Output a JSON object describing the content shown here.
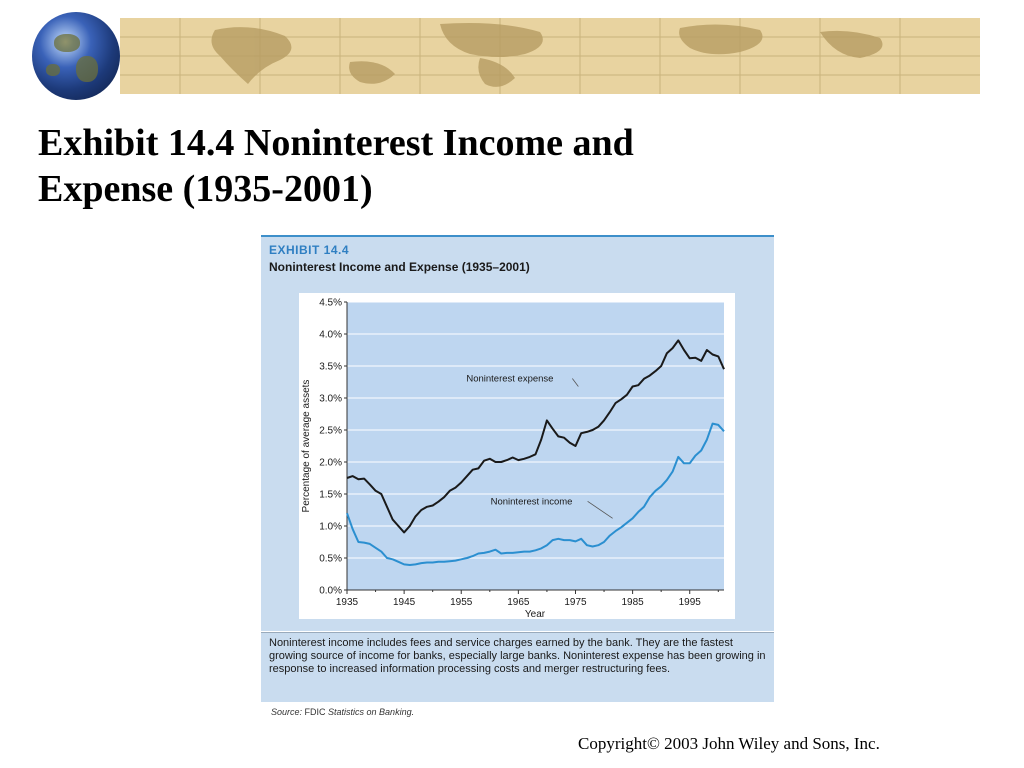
{
  "slide": {
    "title_line1": "Exhibit 14.4  Noninterest Income and",
    "title_line2": "Expense (1935-2001)",
    "copyright": "Copyright© 2003  John Wiley and Sons, Inc."
  },
  "exhibit": {
    "label": "EXHIBIT 14.4",
    "subtitle": "Noninterest Income and Expense (1935–2001)",
    "caption": "Noninterest income includes fees and service charges earned by the bank. They are the fastest growing source of income for banks, especially large banks. Noninterest expense has been growing in response to increased information processing costs and merger restructuring fees.",
    "source_prefix": "Source:",
    "source_org": " FDIC ",
    "source_title": "Statistics on Banking."
  },
  "chart_data": {
    "type": "line",
    "xlabel": "Year",
    "ylabel": "Percentage of average assets",
    "xlim": [
      1935,
      2001
    ],
    "ylim": [
      0,
      4.5
    ],
    "x_ticks": [
      1935,
      1945,
      1955,
      1965,
      1975,
      1985,
      1995
    ],
    "y_ticks": [
      0,
      0.5,
      1.0,
      1.5,
      2.0,
      2.5,
      3.0,
      3.5,
      4.0,
      4.5
    ],
    "y_tick_labels": [
      "0.0%",
      "0.5%",
      "1.0%",
      "1.5%",
      "2.0%",
      "2.5%",
      "3.0%",
      "3.5%",
      "4.0%",
      "4.5%"
    ],
    "grid": true,
    "series": [
      {
        "name": "Noninterest expense",
        "color": "#1a1a1a",
        "x": [
          1935,
          1936,
          1937,
          1938,
          1939,
          1940,
          1941,
          1942,
          1943,
          1944,
          1945,
          1946,
          1947,
          1948,
          1949,
          1950,
          1951,
          1952,
          1953,
          1954,
          1955,
          1956,
          1957,
          1958,
          1959,
          1960,
          1961,
          1962,
          1963,
          1964,
          1965,
          1966,
          1967,
          1968,
          1969,
          1970,
          1971,
          1972,
          1973,
          1974,
          1975,
          1976,
          1977,
          1978,
          1979,
          1980,
          1981,
          1982,
          1983,
          1984,
          1985,
          1986,
          1987,
          1988,
          1989,
          1990,
          1991,
          1992,
          1993,
          1994,
          1995,
          1996,
          1997,
          1998,
          1999,
          2000,
          2001
        ],
        "values": [
          1.75,
          1.78,
          1.73,
          1.74,
          1.65,
          1.55,
          1.5,
          1.3,
          1.1,
          1.0,
          0.9,
          1.0,
          1.15,
          1.25,
          1.3,
          1.32,
          1.38,
          1.45,
          1.55,
          1.6,
          1.68,
          1.78,
          1.88,
          1.9,
          2.02,
          2.05,
          2.0,
          2.0,
          2.03,
          2.07,
          2.03,
          2.05,
          2.08,
          2.12,
          2.35,
          2.65,
          2.52,
          2.4,
          2.38,
          2.3,
          2.25,
          2.45,
          2.47,
          2.5,
          2.55,
          2.65,
          2.78,
          2.92,
          2.98,
          3.05,
          3.18,
          3.2,
          3.3,
          3.35,
          3.42,
          3.5,
          3.7,
          3.78,
          3.9,
          3.75,
          3.62,
          3.63,
          3.58,
          3.75,
          3.68,
          3.65,
          3.45
        ]
      },
      {
        "name": "Noninterest income",
        "color": "#2b8fd0",
        "x": [
          1935,
          1936,
          1937,
          1938,
          1939,
          1940,
          1941,
          1942,
          1943,
          1944,
          1945,
          1946,
          1947,
          1948,
          1949,
          1950,
          1951,
          1952,
          1953,
          1954,
          1955,
          1956,
          1957,
          1958,
          1959,
          1960,
          1961,
          1962,
          1963,
          1964,
          1965,
          1966,
          1967,
          1968,
          1969,
          1970,
          1971,
          1972,
          1973,
          1974,
          1975,
          1976,
          1977,
          1978,
          1979,
          1980,
          1981,
          1982,
          1983,
          1984,
          1985,
          1986,
          1987,
          1988,
          1989,
          1990,
          1991,
          1992,
          1993,
          1994,
          1995,
          1996,
          1997,
          1998,
          1999,
          2000,
          2001
        ],
        "values": [
          1.2,
          0.95,
          0.75,
          0.74,
          0.72,
          0.66,
          0.6,
          0.5,
          0.48,
          0.44,
          0.4,
          0.39,
          0.4,
          0.42,
          0.43,
          0.43,
          0.44,
          0.44,
          0.45,
          0.46,
          0.48,
          0.5,
          0.53,
          0.57,
          0.58,
          0.6,
          0.63,
          0.57,
          0.58,
          0.58,
          0.59,
          0.6,
          0.6,
          0.62,
          0.65,
          0.7,
          0.78,
          0.8,
          0.78,
          0.78,
          0.76,
          0.8,
          0.7,
          0.68,
          0.7,
          0.75,
          0.85,
          0.92,
          0.98,
          1.05,
          1.12,
          1.22,
          1.3,
          1.45,
          1.55,
          1.62,
          1.72,
          1.85,
          2.08,
          1.98,
          1.98,
          2.1,
          2.18,
          2.35,
          2.6,
          2.58,
          2.48
        ]
      }
    ],
    "annotations": [
      {
        "text": "Noninterest expense",
        "x": 1975.5,
        "y": 3.18
      },
      {
        "text": "Noninterest income",
        "x": 1981.5,
        "y": 1.12
      }
    ]
  }
}
